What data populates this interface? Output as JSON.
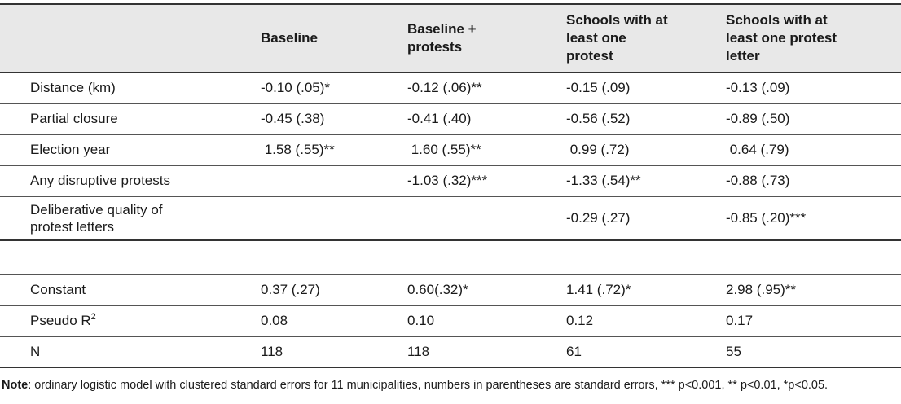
{
  "table": {
    "headers": [
      "",
      "Baseline",
      "Baseline + protests",
      "Schools with at least one protest",
      "Schools with at least one protest letter"
    ],
    "rows": [
      {
        "label": "Distance (km)",
        "cells": [
          "-0.10 (.05)*",
          "-0.12 (.06)**",
          "-0.15 (.09)",
          "-0.13 (.09)"
        ]
      },
      {
        "label": "Partial closure",
        "cells": [
          "-0.45 (.38)",
          "-0.41 (.40)",
          "-0.56 (.52)",
          "-0.89 (.50)"
        ]
      },
      {
        "label": "Election year",
        "cells": [
          " 1.58 (.55)**",
          " 1.60 (.55)**",
          " 0.99 (.72)",
          " 0.64 (.79)"
        ]
      },
      {
        "label": "Any disruptive protests",
        "cells": [
          "",
          "-1.03 (.32)***",
          "-1.33 (.54)**",
          "-0.88 (.73)"
        ]
      },
      {
        "label": "Deliberative quality of protest letters",
        "cells": [
          "",
          "",
          "-0.29 (.27)",
          "-0.85 (.20)***"
        ]
      }
    ],
    "bottom_rows": [
      {
        "label": "Constant",
        "cells": [
          "0.37 (.27)",
          "0.60(.32)*",
          "1.41 (.72)*",
          "2.98 (.95)**"
        ]
      },
      {
        "label": "Pseudo R",
        "label_sup": "2",
        "cells": [
          "0.08",
          "0.10",
          "0.12",
          "0.17"
        ]
      },
      {
        "label": "N",
        "cells": [
          "118",
          "118",
          "61",
          "55"
        ]
      }
    ]
  },
  "note": {
    "bold": "Note",
    "text": ": ordinary logistic model with clustered standard errors for 11 municipalities, numbers in parentheses are standard errors, *** p<0.001, ** p<0.01, *p<0.05."
  }
}
